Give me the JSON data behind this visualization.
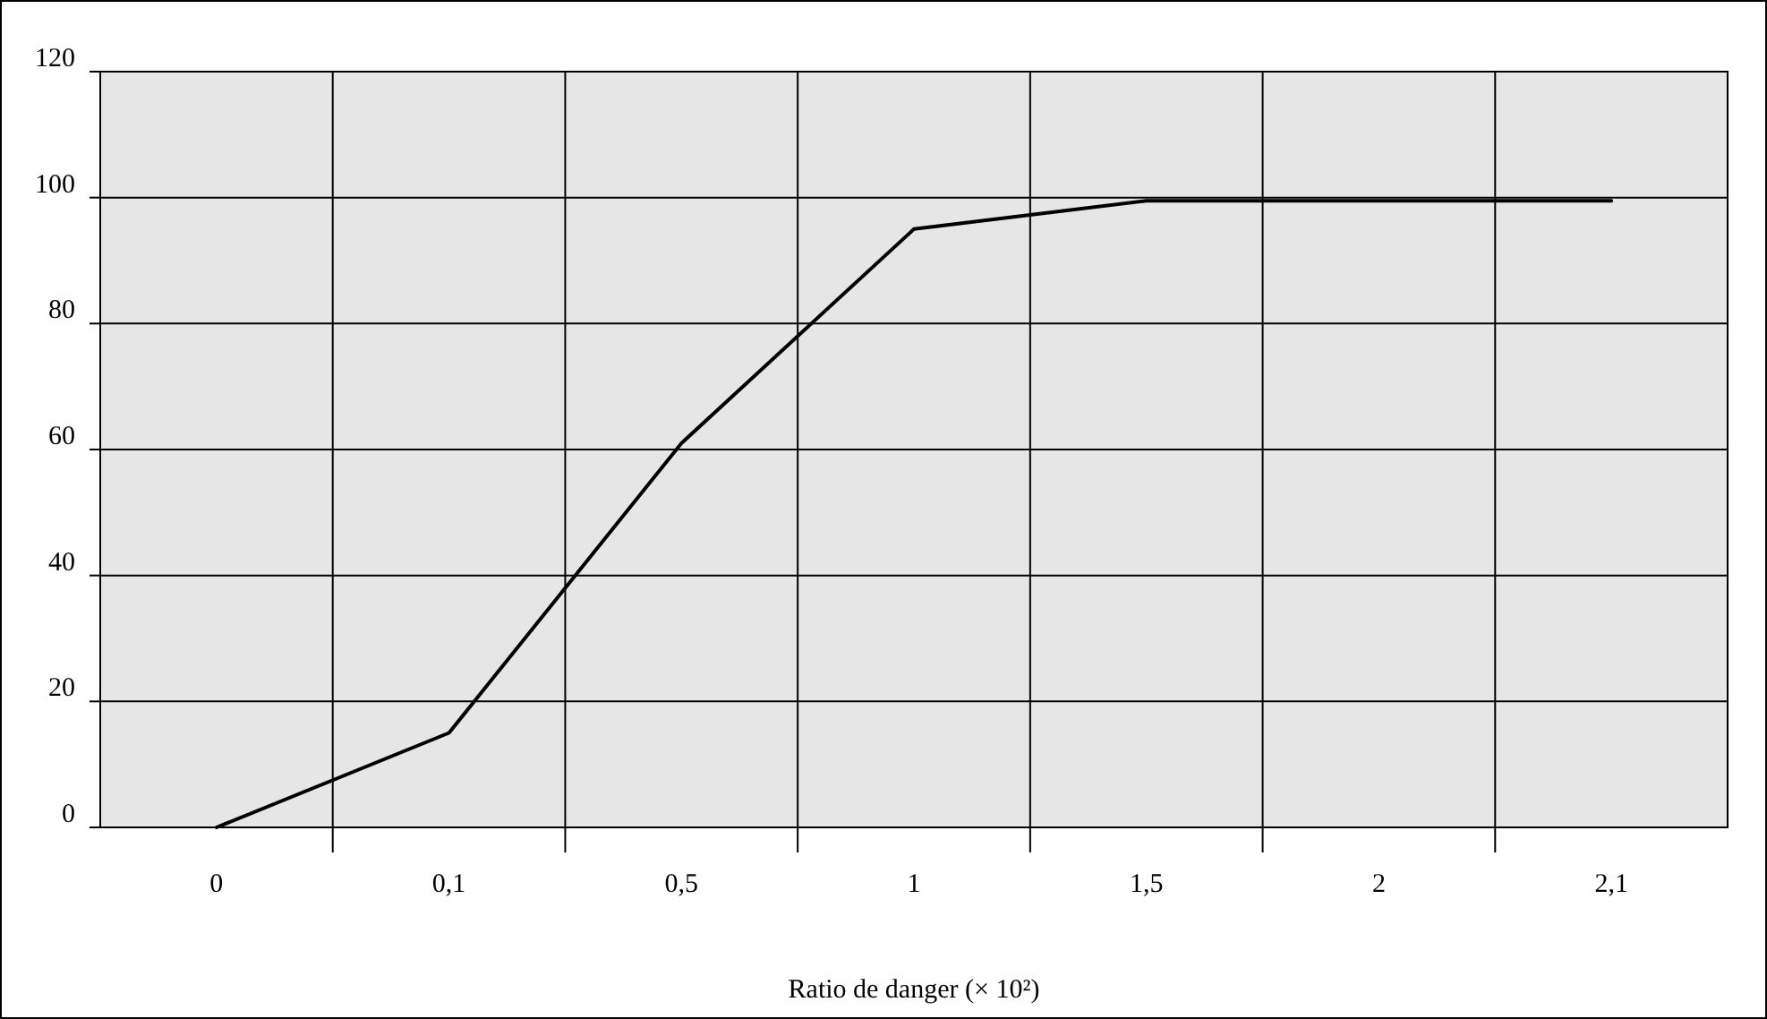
{
  "chart_data": {
    "type": "line",
    "xlabel": "Ratio de danger (× 10²)",
    "categories": [
      "0",
      "0,1",
      "0,5",
      "1",
      "1,5",
      "2",
      "2,1"
    ],
    "series": [
      {
        "color": "#000000",
        "values": [
          0,
          15,
          61,
          95,
          99.5,
          99.5,
          99.5
        ]
      }
    ],
    "ylim": [
      0,
      120
    ],
    "yticks": [
      0,
      20,
      40,
      60,
      80,
      100,
      120
    ],
    "grid": true,
    "marker": "none",
    "line_style": "solid"
  }
}
